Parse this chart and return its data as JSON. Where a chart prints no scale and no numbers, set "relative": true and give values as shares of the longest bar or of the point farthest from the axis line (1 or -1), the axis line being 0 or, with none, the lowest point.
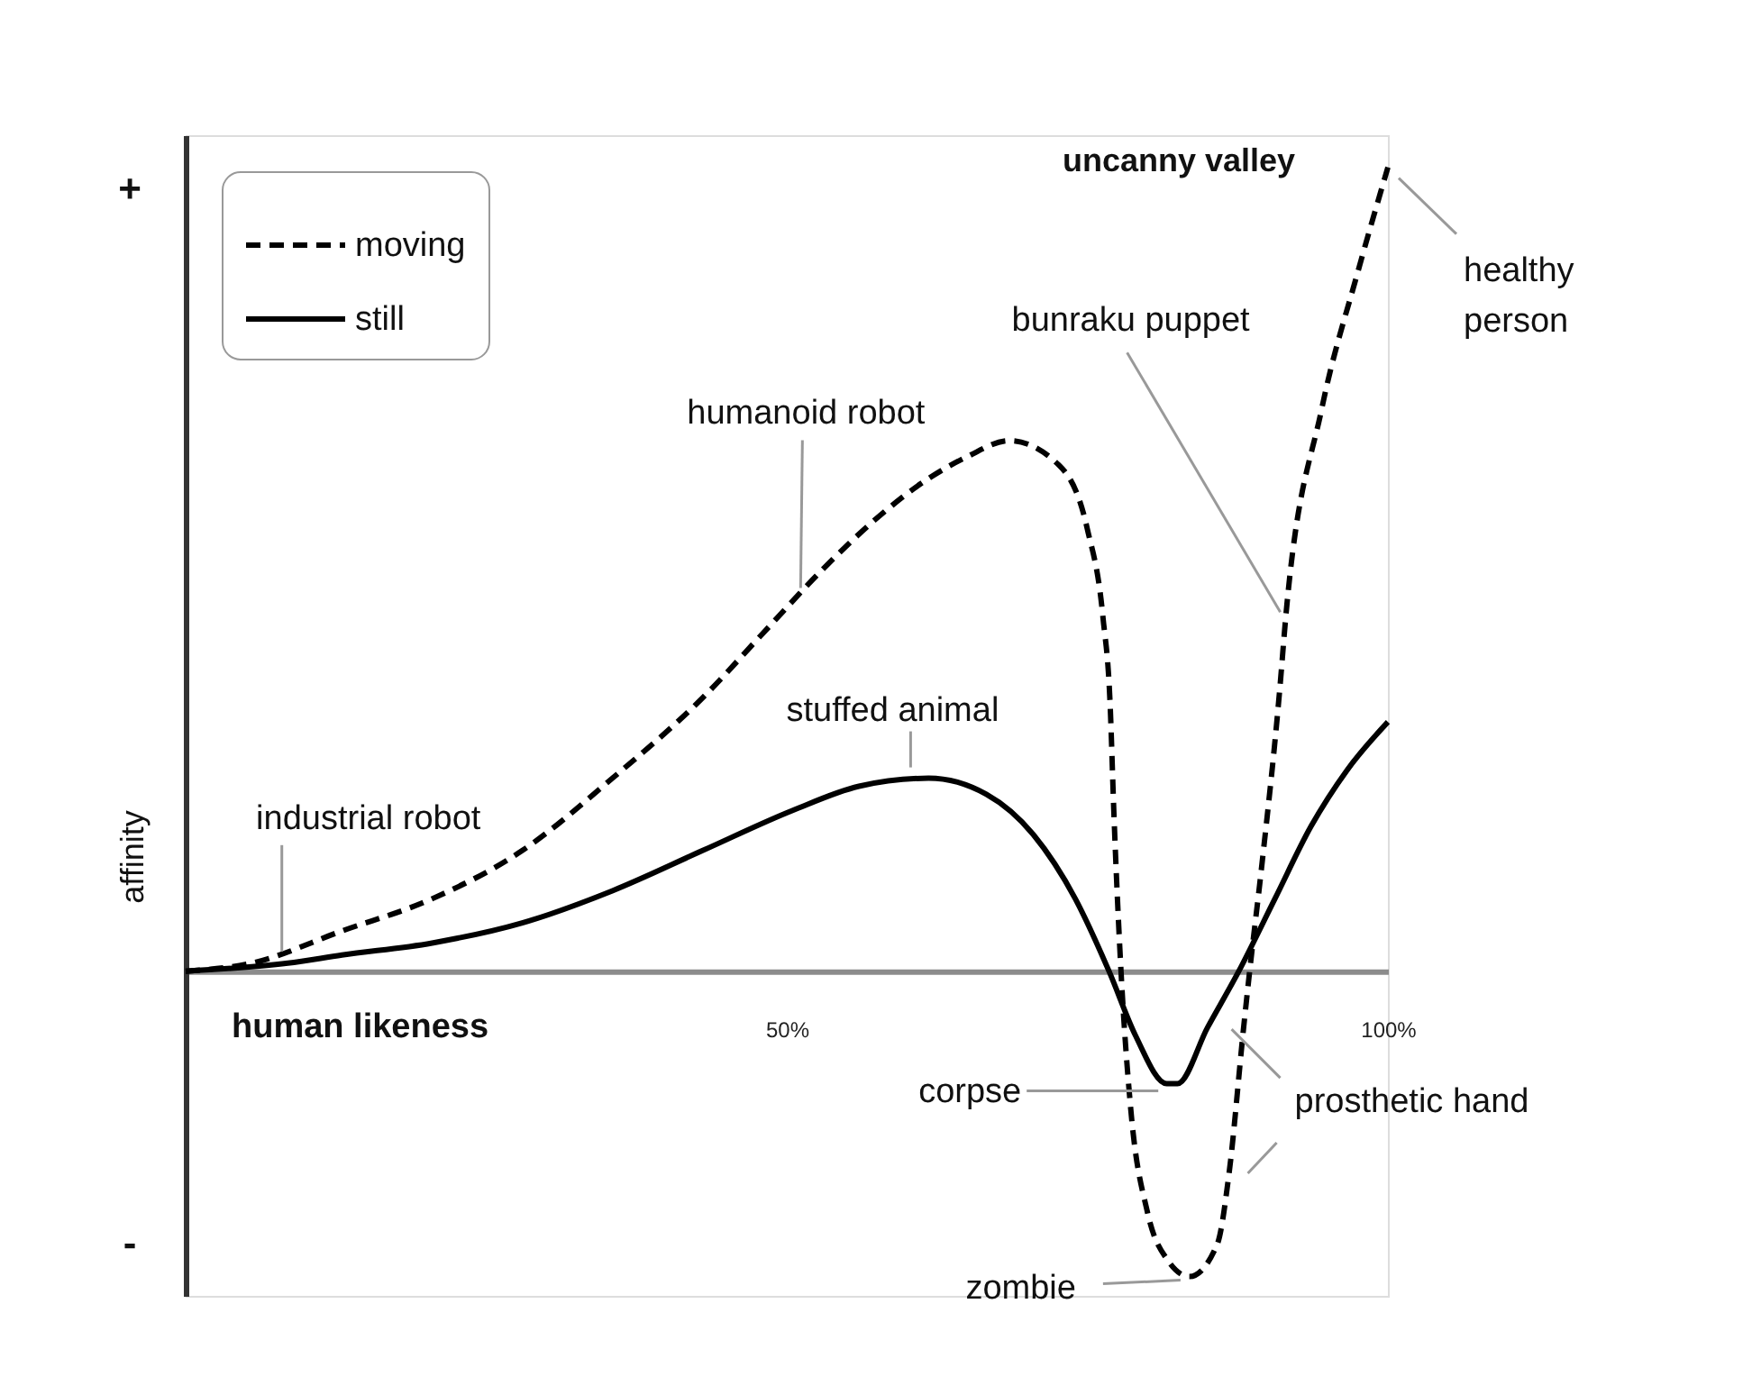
{
  "chart_data": {
    "type": "line",
    "xlabel": "human likeness",
    "ylabel": "affinity",
    "relative": true,
    "xlim": [
      0,
      100
    ],
    "xticks": [
      {
        "value": 50,
        "label": "50%"
      },
      {
        "value": 100,
        "label": "100%"
      }
    ],
    "grid": false,
    "legend": "top left",
    "series": [
      {
        "name": "moving",
        "color": "#000000",
        "line_style": "dashed",
        "x": [
          0,
          5.5,
          13,
          20.5,
          28,
          35.5,
          43,
          48,
          53,
          58,
          61.5,
          65,
          68.5,
          72.6,
          75,
          76.3,
          76.9,
          77.2,
          77.8,
          78.6,
          80,
          81.7,
          83.5,
          85.8,
          86.8,
          88,
          88.5,
          89.5,
          91,
          91.5,
          94.5,
          97.5,
          100
        ],
        "values": [
          0,
          0.01,
          0.05,
          0.09,
          0.15,
          0.24,
          0.34,
          0.42,
          0.5,
          0.57,
          0.61,
          0.64,
          0.66,
          0.63,
          0.55,
          0.44,
          0.33,
          0.2,
          0,
          -0.17,
          -0.3,
          -0.36,
          -0.38,
          -0.34,
          -0.25,
          -0.07,
          0,
          0.13,
          0.35,
          0.44,
          0.7,
          0.87,
          1
        ]
      },
      {
        "name": "still",
        "color": "#000000",
        "line_style": "solid",
        "x": [
          0,
          8.5,
          13,
          20.5,
          28,
          35.5,
          43,
          50.5,
          56,
          61.8,
          66.6,
          70.5,
          74,
          76.8,
          79,
          81.6,
          82.5,
          85,
          87.6,
          90.6,
          93.6,
          96.6,
          100
        ],
        "values": [
          0,
          0.01,
          0.02,
          0.035,
          0.06,
          0.1,
          0.15,
          0.2,
          0.23,
          0.24,
          0.22,
          0.17,
          0.09,
          0,
          -0.08,
          -0.14,
          -0.14,
          -0.07,
          0,
          0.09,
          0.18,
          0.25,
          0.31
        ]
      }
    ],
    "annotations": [
      "+",
      "-",
      "uncanny valley",
      {
        "text": "industrial robot",
        "x": 8,
        "y": 0.02
      },
      {
        "text": "humanoid robot",
        "x": 51,
        "y": 0.47
      },
      {
        "text": "stuffed animal",
        "x": 60,
        "y": 0.24
      },
      {
        "text": "bunraku puppet",
        "x": 91.5,
        "y": 0.44
      },
      {
        "text": "healthy person",
        "x": 100,
        "y": 1
      },
      {
        "text": "corpse",
        "x": 81.5,
        "y": -0.14
      },
      {
        "text": "zombie",
        "x": 83.5,
        "y": -0.38
      },
      {
        "text": "prosthetic hand",
        "x": 87,
        "y": -0.07
      }
    ]
  }
}
